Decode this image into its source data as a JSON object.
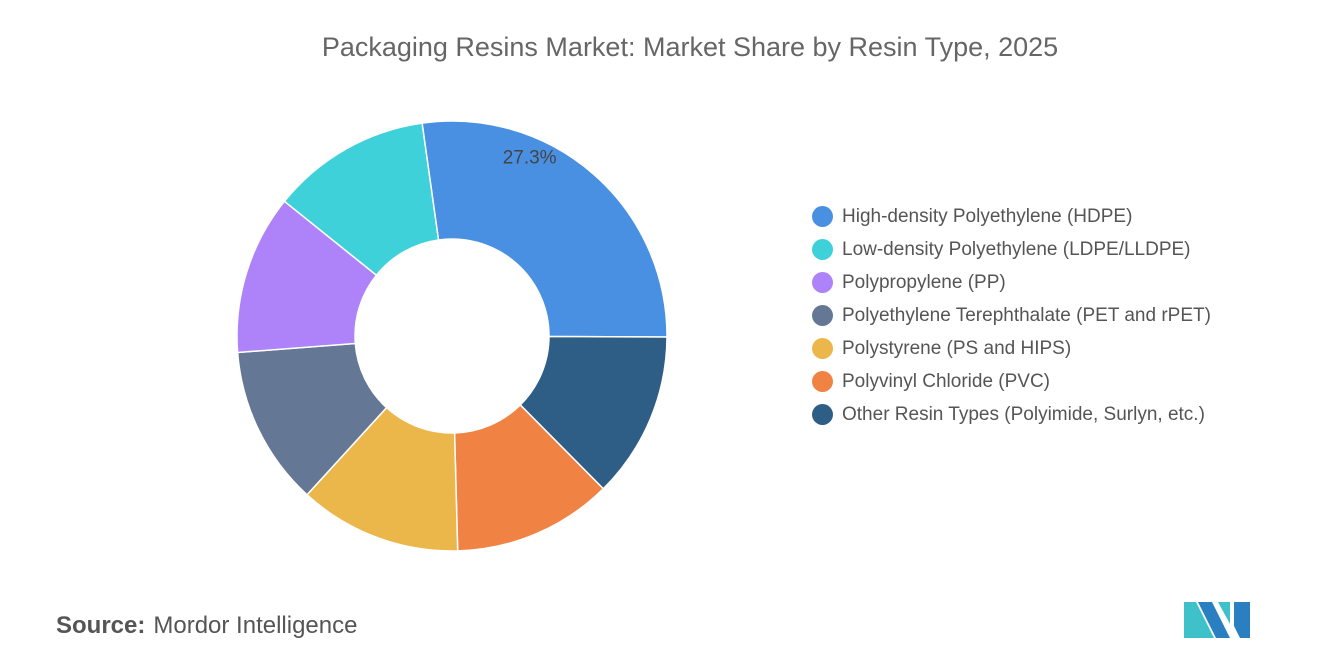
{
  "chart_data": {
    "type": "pie",
    "title": "Packaging Resins Market: Market Share by Resin Type, 2025",
    "categories": [
      "High-density Polyethylene (HDPE)",
      "Low-density Polyethylene (LDPE/LLDPE)",
      "Polypropylene (PP)",
      "Polyethylene Terephthalate (PET and rPET)",
      "Polystyrene (PS and HIPS)",
      "Polyvinyl Chloride (PVC)",
      "Other Resin Types (Polyimide, Surlyn, etc.)"
    ],
    "values": [
      27.3,
      12.0,
      12.0,
      12.0,
      12.2,
      12.0,
      12.5
    ],
    "colors": [
      "#4a90e2",
      "#3fd1d9",
      "#ae82f8",
      "#647896",
      "#ebb64a",
      "#f08343",
      "#2e5e86"
    ],
    "data_labels": [
      "27.3%"
    ],
    "legend_position": "right",
    "hole": true
  },
  "source": {
    "label": "Source:",
    "value": "Mordor Intelligence"
  }
}
